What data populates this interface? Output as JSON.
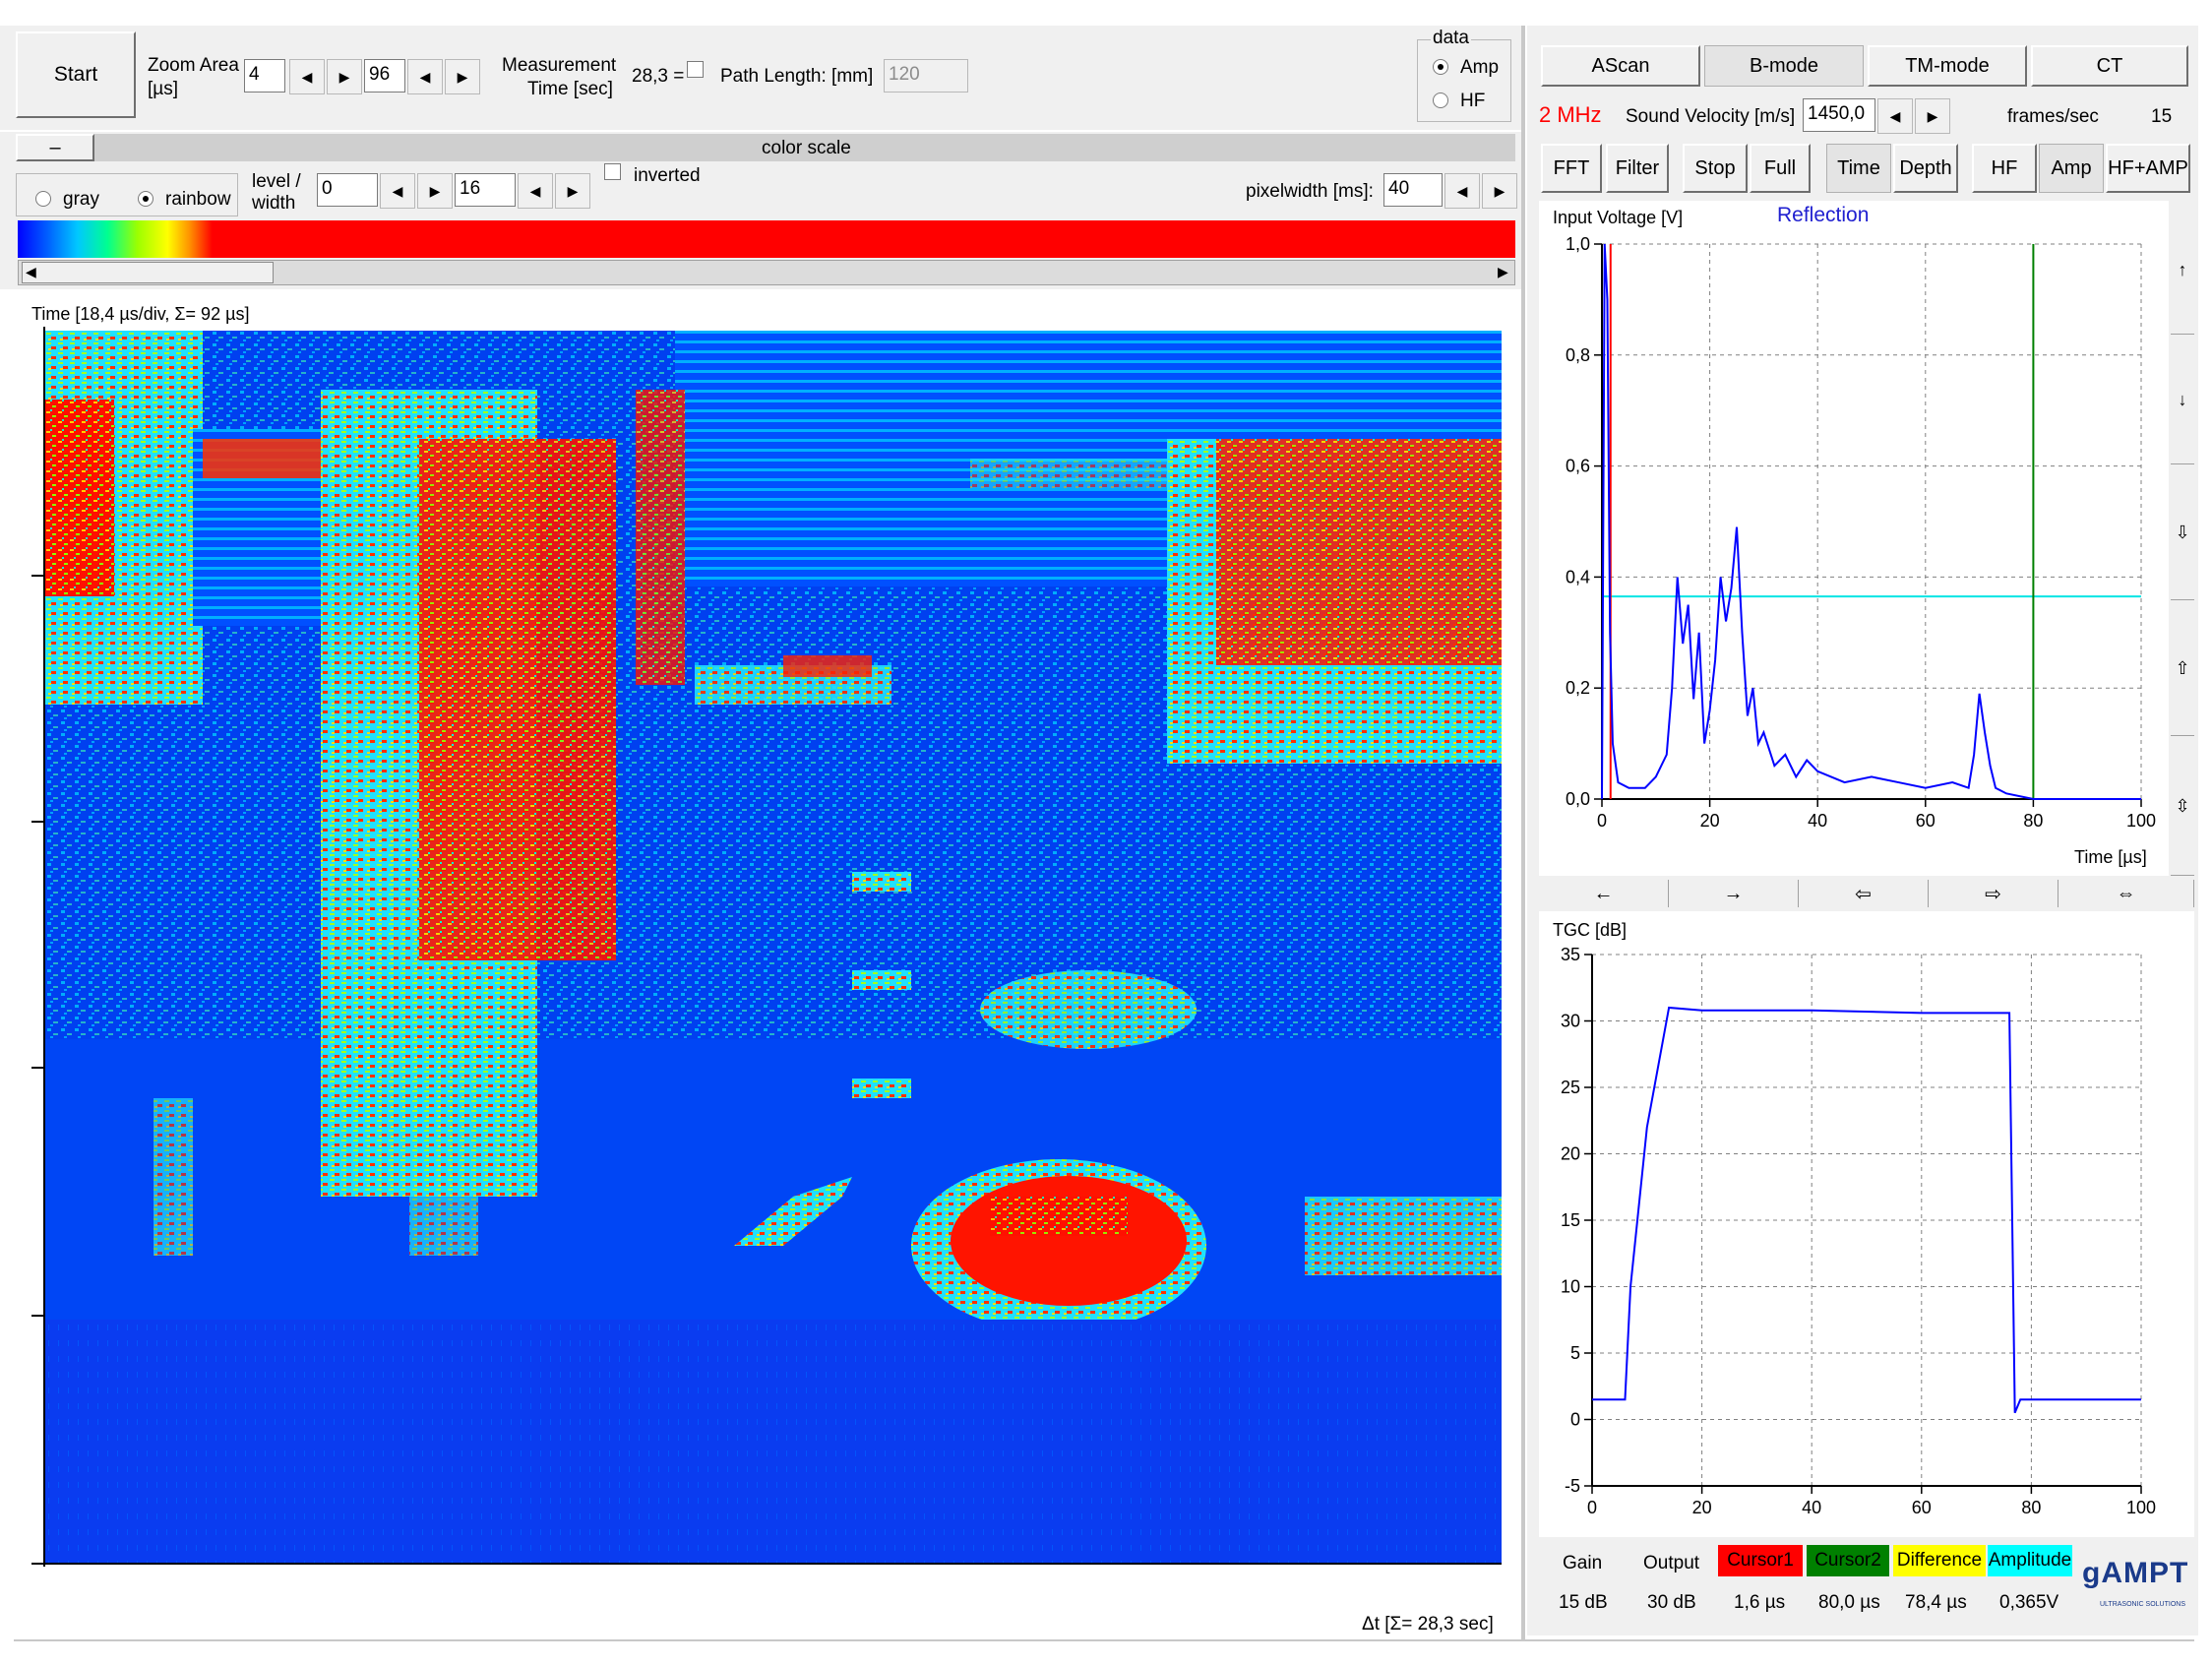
{
  "toolbar": {
    "start_label": "Start",
    "zoom_label_1": "Zoom Area",
    "zoom_label_2": "[µs]",
    "zoom_start": "4",
    "zoom_end": "96",
    "measure_label_1": "Measurement",
    "measure_label_2": "Time [sec]",
    "measure_value": "28,3 =",
    "path_label": "Path Length: [mm]",
    "path_value": "120",
    "data_group_label": "data",
    "data_amp": "Amp",
    "data_hf": "HF"
  },
  "colorscale": {
    "collapse_label": "–",
    "title": "color scale",
    "gray": "gray",
    "rainbow": "rainbow",
    "level_label_1": "level /",
    "level_label_2": "width",
    "level_value": "0",
    "width_value": "16",
    "inverted_label": "inverted",
    "pixelwidth_label": "pixelwidth [ms]:",
    "pixelwidth_value": "40"
  },
  "bmode": {
    "axis_label": "Time   [18,4 µs/div, Σ= 92 µs]",
    "footer_label": "Δt  [Σ= 28,3 sec]"
  },
  "modes": {
    "ascan": "AScan",
    "bmode": "B-mode",
    "tmmode": "TM-mode",
    "ct": "CT"
  },
  "settings": {
    "frequency": "2 MHz",
    "velocity_label": "Sound Velocity [m/s]",
    "velocity_value": "1450,0",
    "fps_label": "frames/sec",
    "fps_value": "15"
  },
  "buttons": {
    "fft": "FFT",
    "filter": "Filter",
    "stop": "Stop",
    "full": "Full",
    "time": "Time",
    "depth": "Depth",
    "hf": "HF",
    "amp": "Amp",
    "hfamp": "HF+AMP"
  },
  "ascan_chart": {
    "ylabel": "Input Voltage [V]",
    "mode_label": "Reflection",
    "xlabel": "Time [µs]",
    "yticks": [
      "0,0",
      "0,2",
      "0,4",
      "0,6",
      "0,8",
      "1,0"
    ],
    "xticks": [
      "0",
      "20",
      "40",
      "60",
      "80",
      "100"
    ],
    "xlim": [
      0,
      100
    ],
    "ylim": [
      0,
      1.0
    ],
    "cursor1_x": 1.6,
    "cursor2_x": 80.0,
    "amplitude_y": 0.365,
    "cursor1_color": "#ff0000",
    "cursor2_color": "#008000",
    "amplitude_color": "#00e5e5",
    "line_color": "#0000ff",
    "trace": [
      [
        0,
        0.0
      ],
      [
        0.5,
        1.0
      ],
      [
        1,
        0.9
      ],
      [
        1.5,
        0.3
      ],
      [
        2,
        0.1
      ],
      [
        3,
        0.03
      ],
      [
        5,
        0.02
      ],
      [
        8,
        0.02
      ],
      [
        10,
        0.04
      ],
      [
        12,
        0.08
      ],
      [
        13,
        0.2
      ],
      [
        14,
        0.4
      ],
      [
        15,
        0.28
      ],
      [
        16,
        0.35
      ],
      [
        17,
        0.18
      ],
      [
        18,
        0.3
      ],
      [
        19,
        0.1
      ],
      [
        20,
        0.16
      ],
      [
        21,
        0.25
      ],
      [
        22,
        0.4
      ],
      [
        23,
        0.32
      ],
      [
        24,
        0.38
      ],
      [
        25,
        0.49
      ],
      [
        26,
        0.3
      ],
      [
        27,
        0.15
      ],
      [
        28,
        0.2
      ],
      [
        29,
        0.1
      ],
      [
        30,
        0.12
      ],
      [
        32,
        0.06
      ],
      [
        34,
        0.08
      ],
      [
        36,
        0.04
      ],
      [
        38,
        0.07
      ],
      [
        40,
        0.05
      ],
      [
        45,
        0.03
      ],
      [
        50,
        0.04
      ],
      [
        55,
        0.03
      ],
      [
        60,
        0.02
      ],
      [
        65,
        0.03
      ],
      [
        68,
        0.02
      ],
      [
        69,
        0.08
      ],
      [
        70,
        0.19
      ],
      [
        71,
        0.12
      ],
      [
        72,
        0.06
      ],
      [
        73,
        0.02
      ],
      [
        75,
        0.01
      ],
      [
        80,
        0.0
      ],
      [
        100,
        0.0
      ]
    ]
  },
  "tgc_chart": {
    "ylabel": "TGC [dB]",
    "yticks": [
      "-5",
      "0",
      "5",
      "10",
      "15",
      "20",
      "25",
      "30",
      "35"
    ],
    "xticks": [
      "0",
      "20",
      "40",
      "60",
      "80",
      "100"
    ],
    "xlim": [
      0,
      100
    ],
    "ylim": [
      -5,
      35
    ],
    "line_color": "#0000ff",
    "trace": [
      [
        0,
        1.5
      ],
      [
        1,
        1.5
      ],
      [
        6,
        1.5
      ],
      [
        7,
        10
      ],
      [
        10,
        22
      ],
      [
        14,
        31
      ],
      [
        20,
        30.8
      ],
      [
        40,
        30.8
      ],
      [
        60,
        30.6
      ],
      [
        76,
        30.6
      ],
      [
        77,
        0.5
      ],
      [
        78,
        1.5
      ],
      [
        100,
        1.5
      ]
    ]
  },
  "footer": {
    "gain_label": "Gain",
    "gain_value": "15 dB",
    "output_label": "Output",
    "output_value": "30 dB",
    "cursor1_label": "Cursor1",
    "cursor1_value": "1,6 µs",
    "cursor2_label": "Cursor2",
    "cursor2_value": "80,0 µs",
    "difference_label": "Difference",
    "difference_value": "78,4 µs",
    "amplitude_label": "Amplitude",
    "amplitude_value": "0,365V",
    "logo": "gAMPT",
    "logo_sub": "ULTRASONIC SOLUTIONS"
  }
}
